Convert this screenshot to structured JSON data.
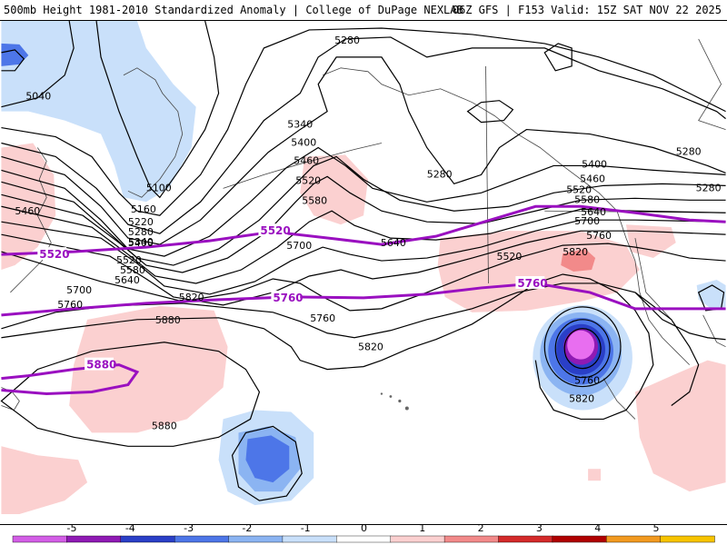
{
  "header": {
    "left": "500mb Height 1981-2010 Standardized Anomaly | College of DuPage NEXLAB",
    "right": "06Z GFS | F153 Valid: 15Z SAT NOV 22 2025"
  },
  "contour_labels": {
    "c5040": "5040",
    "c5100": "5100",
    "c5160": "5160",
    "c5220": "5220",
    "c5280a": "5280",
    "c5280b": "5280",
    "c5280c": "5280",
    "c5280d": "5280",
    "c5280e": "5280",
    "c5340a": "5340",
    "c5340b": "5340",
    "c5400a": "5400",
    "c5400b": "5400",
    "c5400c": "5400",
    "c5460a": "5460",
    "c5460b": "5460",
    "c5460c": "5460",
    "c5520a": "5520",
    "c5520b": "5520",
    "c5520c": "5520",
    "c5520d": "5520",
    "c5580a": "5580",
    "c5580b": "5580",
    "c5580c": "5580",
    "c5640a": "5640",
    "c5640b": "5640",
    "c5640c": "5640",
    "c5700a": "5700",
    "c5700b": "5700",
    "c5700c": "5700",
    "c5760a": "5760",
    "c5760b": "5760",
    "c5760c": "5760",
    "c5760d": "5760",
    "c5820a": "5820",
    "c5820b": "5820",
    "c5820c": "5820",
    "c5820d": "5820",
    "c5880a": "5880",
    "c5880b": "5880"
  },
  "highlight_labels": {
    "h5520a": "5520",
    "h5520b": "5520",
    "h5760a": "5760",
    "h5760b": "5760",
    "h5880": "5880"
  },
  "colorbar": {
    "ticks": [
      "-5",
      "-4",
      "-3",
      "-2",
      "-1",
      "0",
      "1",
      "2",
      "3",
      "4",
      "5"
    ],
    "colors": [
      "#d35ee6",
      "#8f1ab4",
      "#2a3fc7",
      "#4d76e8",
      "#8bb4f2",
      "#c9e0fa",
      "#ffffff",
      "#fbd0d0",
      "#f28a8a",
      "#d42a2a",
      "#b00000",
      "#f29a20",
      "#f7c400"
    ]
  },
  "colors": {
    "highlight_contour": "#9a10c0",
    "contour": "#000000",
    "coast": "#444444"
  }
}
